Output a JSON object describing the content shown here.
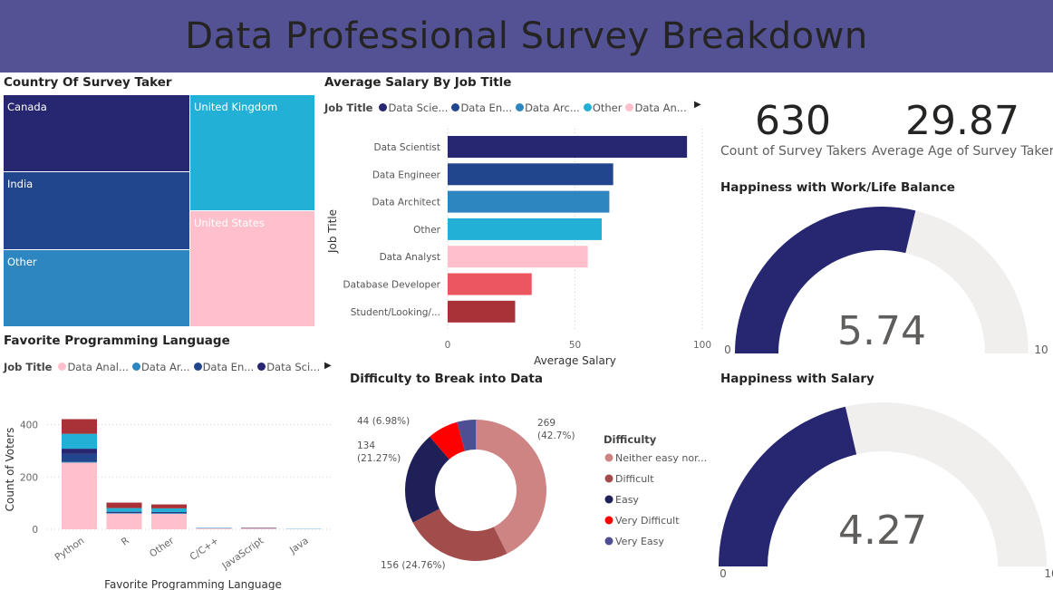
{
  "header": {
    "title": "Data Professional Survey Breakdown"
  },
  "treemap": {
    "title": "Country Of Survey Taker",
    "items": [
      {
        "label": "Canada",
        "color": "#262671"
      },
      {
        "label": "India",
        "color": "#22468d"
      },
      {
        "label": "Other",
        "color": "#2e86c1"
      },
      {
        "label": "United Kingdom",
        "color": "#22b0d6"
      },
      {
        "label": "United States",
        "color": "#ffc0cb"
      }
    ]
  },
  "salary": {
    "title": "Average Salary By Job Title",
    "legend_title": "Job Title",
    "legend": [
      {
        "label": "Data Scie...",
        "color": "#262671"
      },
      {
        "label": "Data En...",
        "color": "#22468d"
      },
      {
        "label": "Data Arc...",
        "color": "#2e86c1"
      },
      {
        "label": "Other",
        "color": "#22b0d6"
      },
      {
        "label": "Data An...",
        "color": "#ffc0cb"
      }
    ]
  },
  "language": {
    "title": "Favorite Programming Language",
    "legend_title": "Job Title",
    "legend": [
      {
        "label": "Data Anal...",
        "color": "#ffc0cb"
      },
      {
        "label": "Data Ar...",
        "color": "#2e86c1"
      },
      {
        "label": "Data En...",
        "color": "#22468d"
      },
      {
        "label": "Data Sci...",
        "color": "#262671"
      }
    ]
  },
  "difficulty": {
    "title": "Difficulty to Break into Data",
    "legend_title": "Difficulty"
  },
  "kpis": [
    {
      "value": "630",
      "label": "Count of Survey Takers"
    },
    {
      "value": "29.87",
      "label": "Average Age of Survey Takers"
    }
  ],
  "gauges": [
    {
      "title": "Happiness with Work/Life Balance",
      "value": 5.74,
      "value_label": "5.74",
      "min": 0,
      "max": 10,
      "min_label": "0",
      "max_label": "10",
      "color": "#262671"
    },
    {
      "title": "Happiness with Salary",
      "value": 4.27,
      "value_label": "4.27",
      "min": 0,
      "max": 10,
      "min_label": "0",
      "max_label": "10",
      "color": "#262671"
    }
  ],
  "chart_data": [
    {
      "type": "bar",
      "orientation": "horizontal",
      "categories": [
        "Data Scientist",
        "Data Engineer",
        "Data Architect",
        "Other",
        "Data Analyst",
        "Database Developer",
        "Student/Looking/..."
      ],
      "values": [
        94,
        65,
        63.5,
        60.5,
        55,
        33,
        26.5
      ],
      "colors": [
        "#262671",
        "#22468d",
        "#2e86c1",
        "#22b0d6",
        "#ffc0cb",
        "#eb5660",
        "#a83237"
      ],
      "xlabel": "Average Salary",
      "ylabel": "Job Title",
      "xlim": [
        0,
        100
      ],
      "xticks": [
        "0",
        "50",
        "100"
      ],
      "grid": true
    },
    {
      "type": "bar",
      "stacked": true,
      "categories": [
        "Python",
        "R",
        "Other",
        "C/C++",
        "JavaScript",
        "Java"
      ],
      "series": [
        {
          "name": "Data Analyst",
          "color": "#ffc0cb",
          "values": [
            255,
            60,
            59,
            4,
            3,
            1
          ]
        },
        {
          "name": "Data Architect",
          "color": "#2e86c1",
          "values": [
            3,
            2,
            3,
            1,
            1,
            0
          ]
        },
        {
          "name": "Data Engineer",
          "color": "#22468d",
          "values": [
            30,
            2,
            2,
            0,
            1,
            0
          ]
        },
        {
          "name": "Data Scientist",
          "color": "#262671",
          "values": [
            20,
            3,
            2,
            0,
            0,
            0
          ]
        },
        {
          "color": "#22b0d6",
          "values": [
            57,
            14,
            14,
            1,
            0,
            1
          ]
        },
        {
          "color": "#a83237",
          "values": [
            56,
            21,
            15,
            0,
            1,
            0
          ]
        }
      ],
      "xlabel": "Favorite Programming Language",
      "ylabel": "Count of Voters",
      "ylim": [
        0,
        440
      ],
      "yticks": [
        "0",
        "200",
        "400"
      ],
      "grid": true
    },
    {
      "type": "pie",
      "donut": true,
      "labels": [
        "Neither easy nor...",
        "Difficult",
        "Easy",
        "Very Difficult",
        "Very Easy"
      ],
      "values": [
        269,
        156,
        134,
        44,
        27
      ],
      "colors": [
        "#cd8483",
        "#a34c4c",
        "#1f2057",
        "#fe0000",
        "#4d4f92"
      ],
      "data_labels": [
        "269\n(42.7%)",
        "156 (24.76%)",
        "134\n(21.27%)",
        "44 (6.98%)",
        ""
      ],
      "legend": "right"
    }
  ]
}
